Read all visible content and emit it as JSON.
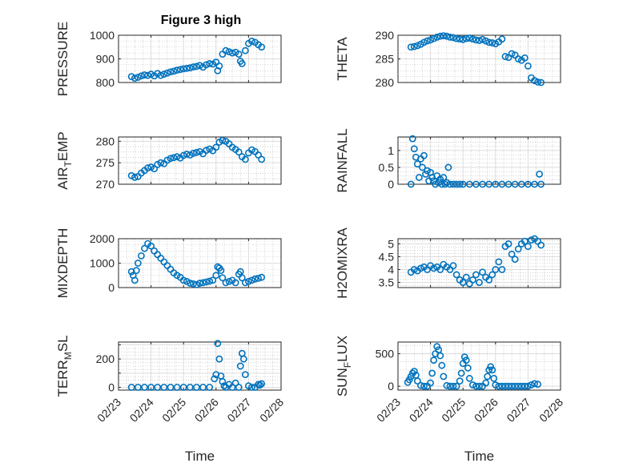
{
  "figure": {
    "title": "Figure 3 high"
  },
  "colors": {
    "marker": "#0072BD",
    "axis": "#262626",
    "grid": "#dcdcdc",
    "minor_grid": "#b4b4b4"
  },
  "chart_data": [
    {
      "id": "pressure",
      "type": "scatter",
      "ylabel": "PRESSURE",
      "xlim": [
        0,
        5
      ],
      "ylim": [
        800,
        1000
      ],
      "yticks": [
        800,
        900,
        1000
      ],
      "ytick_labels": [
        "800",
        "900",
        "1000"
      ],
      "xticks": [
        0,
        1,
        2,
        3,
        4,
        5
      ],
      "xtick_labels": [
        "02/23",
        "02/24",
        "02/25",
        "02/26",
        "02/27",
        "02/28"
      ],
      "show_xtick_labels": false,
      "xlabel": "",
      "x": [
        0.4,
        0.5,
        0.6,
        0.7,
        0.8,
        0.9,
        1.0,
        1.1,
        1.2,
        1.3,
        1.4,
        1.5,
        1.6,
        1.7,
        1.8,
        1.9,
        2.0,
        2.1,
        2.2,
        2.3,
        2.4,
        2.5,
        2.6,
        2.7,
        2.8,
        2.9,
        3.0,
        3.05,
        3.1,
        3.2,
        3.3,
        3.4,
        3.5,
        3.6,
        3.7,
        3.75,
        3.8,
        3.9,
        4.0,
        4.1,
        4.2,
        4.3,
        4.4
      ],
      "y": [
        825,
        818,
        822,
        828,
        832,
        830,
        835,
        828,
        838,
        830,
        835,
        840,
        845,
        848,
        852,
        855,
        858,
        860,
        862,
        866,
        868,
        872,
        865,
        875,
        880,
        878,
        886,
        850,
        870,
        920,
        935,
        930,
        925,
        928,
        920,
        890,
        880,
        935,
        965,
        975,
        970,
        960,
        950
      ]
    },
    {
      "id": "theta",
      "type": "scatter",
      "ylabel": "THETA",
      "xlim": [
        0,
        5
      ],
      "ylim": [
        280,
        290
      ],
      "yticks": [
        280,
        285,
        290
      ],
      "ytick_labels": [
        "280",
        "285",
        "290"
      ],
      "xticks": [
        0,
        1,
        2,
        3,
        4,
        5
      ],
      "xtick_labels": [
        "02/23",
        "02/24",
        "02/25",
        "02/26",
        "02/27",
        "02/28"
      ],
      "show_xtick_labels": false,
      "xlabel": "",
      "x": [
        0.4,
        0.5,
        0.6,
        0.7,
        0.8,
        0.9,
        1.0,
        1.1,
        1.2,
        1.3,
        1.4,
        1.5,
        1.6,
        1.7,
        1.8,
        1.9,
        2.0,
        2.1,
        2.2,
        2.3,
        2.4,
        2.5,
        2.6,
        2.7,
        2.8,
        2.9,
        3.0,
        3.1,
        3.2,
        3.3,
        3.4,
        3.5,
        3.6,
        3.7,
        3.8,
        3.9,
        4.0,
        4.1,
        4.2,
        4.3,
        4.4
      ],
      "y": [
        287.5,
        287.6,
        287.8,
        288.1,
        288.5,
        288.8,
        289.0,
        289.3,
        289.6,
        289.8,
        289.9,
        289.8,
        289.6,
        289.5,
        289.3,
        289.2,
        289.1,
        289.3,
        289.4,
        289.2,
        289.0,
        288.9,
        289.1,
        288.8,
        288.5,
        288.4,
        288.2,
        288.6,
        289.2,
        285.5,
        285.3,
        286.1,
        285.8,
        285.0,
        284.7,
        285.2,
        283.5,
        281.0,
        280.4,
        280.1,
        280.0
      ]
    },
    {
      "id": "air_temp",
      "type": "scatter",
      "ylabel": "AIR_TEMP",
      "ylabel_base": "AIR",
      "ylabel_sub": "T",
      "ylabel_rest": "EMP",
      "xlim": [
        0,
        5
      ],
      "ylim": [
        270,
        281
      ],
      "yticks": [
        270,
        275,
        280
      ],
      "ytick_labels": [
        "270",
        "275",
        "280"
      ],
      "xticks": [
        0,
        1,
        2,
        3,
        4,
        5
      ],
      "xtick_labels": [
        "02/23",
        "02/24",
        "02/25",
        "02/26",
        "02/27",
        "02/28"
      ],
      "show_xtick_labels": false,
      "xlabel": "",
      "x": [
        0.4,
        0.5,
        0.6,
        0.7,
        0.8,
        0.9,
        1.0,
        1.1,
        1.2,
        1.3,
        1.4,
        1.5,
        1.6,
        1.7,
        1.8,
        1.9,
        2.0,
        2.1,
        2.2,
        2.3,
        2.4,
        2.5,
        2.6,
        2.7,
        2.8,
        2.9,
        3.0,
        3.1,
        3.2,
        3.3,
        3.4,
        3.5,
        3.6,
        3.7,
        3.8,
        3.9,
        4.0,
        4.1,
        4.2,
        4.3,
        4.4
      ],
      "y": [
        272.0,
        271.6,
        271.8,
        272.6,
        273.2,
        273.8,
        274.0,
        273.6,
        274.6,
        275.0,
        274.8,
        275.6,
        276.0,
        276.2,
        276.4,
        276.1,
        276.7,
        277.0,
        276.8,
        277.2,
        277.4,
        277.6,
        277.1,
        277.9,
        278.2,
        277.8,
        278.6,
        279.8,
        280.2,
        280.0,
        279.4,
        278.6,
        278.1,
        277.5,
        276.4,
        275.8,
        277.3,
        278.0,
        277.6,
        276.8,
        275.8
      ]
    },
    {
      "id": "rainfall",
      "type": "scatter",
      "ylabel": "RAINFALL",
      "xlim": [
        0,
        5
      ],
      "ylim": [
        0,
        1.4
      ],
      "yticks": [
        0,
        0.5,
        1
      ],
      "ytick_labels": [
        "0",
        "0.5",
        "1"
      ],
      "xticks": [
        0,
        1,
        2,
        3,
        4,
        5
      ],
      "xtick_labels": [
        "02/23",
        "02/24",
        "02/25",
        "02/26",
        "02/27",
        "02/28"
      ],
      "show_xtick_labels": false,
      "xlabel": "",
      "x": [
        0.4,
        0.45,
        0.5,
        0.55,
        0.6,
        0.65,
        0.7,
        0.75,
        0.8,
        0.85,
        0.9,
        0.95,
        1.0,
        1.05,
        1.1,
        1.15,
        1.2,
        1.25,
        1.3,
        1.35,
        1.4,
        1.45,
        1.5,
        1.55,
        1.6,
        1.7,
        1.8,
        1.9,
        2.0,
        2.2,
        2.4,
        2.6,
        2.8,
        3.0,
        3.2,
        3.4,
        3.6,
        3.8,
        4.0,
        4.2,
        4.4,
        4.35
      ],
      "y": [
        0.0,
        1.35,
        1.05,
        0.8,
        0.6,
        0.2,
        0.75,
        0.5,
        0.85,
        0.3,
        0.4,
        0.1,
        0.35,
        0.2,
        0.1,
        0.0,
        0.25,
        0.05,
        0.15,
        0.0,
        0.2,
        0.0,
        0.05,
        0.5,
        0.0,
        0.0,
        0.0,
        0.0,
        0.0,
        0.0,
        0.0,
        0.0,
        0.0,
        0.0,
        0.0,
        0.0,
        0.0,
        0.0,
        0.0,
        0.0,
        0.0,
        0.3
      ]
    },
    {
      "id": "mixdepth",
      "type": "scatter",
      "ylabel": "MIXDEPTH",
      "xlim": [
        0,
        5
      ],
      "ylim": [
        0,
        2000
      ],
      "yticks": [
        0,
        1000,
        2000
      ],
      "ytick_labels": [
        "0",
        "1000",
        "2000"
      ],
      "xticks": [
        0,
        1,
        2,
        3,
        4,
        5
      ],
      "xtick_labels": [
        "02/23",
        "02/24",
        "02/25",
        "02/26",
        "02/27",
        "02/28"
      ],
      "show_xtick_labels": false,
      "xlabel": "",
      "x": [
        0.4,
        0.45,
        0.5,
        0.55,
        0.6,
        0.7,
        0.8,
        0.9,
        1.0,
        1.1,
        1.2,
        1.3,
        1.4,
        1.5,
        1.6,
        1.7,
        1.8,
        1.9,
        2.0,
        2.1,
        2.2,
        2.3,
        2.4,
        2.5,
        2.6,
        2.7,
        2.8,
        2.9,
        3.0,
        3.05,
        3.1,
        3.15,
        3.2,
        3.3,
        3.4,
        3.5,
        3.6,
        3.7,
        3.75,
        3.8,
        3.9,
        4.0,
        4.1,
        4.2,
        4.3,
        4.4
      ],
      "y": [
        650,
        500,
        300,
        700,
        1000,
        1300,
        1600,
        1800,
        1700,
        1500,
        1350,
        1200,
        1050,
        900,
        750,
        600,
        500,
        420,
        300,
        250,
        180,
        150,
        120,
        180,
        200,
        230,
        260,
        300,
        500,
        850,
        800,
        700,
        400,
        200,
        250,
        300,
        200,
        550,
        650,
        400,
        200,
        250,
        300,
        350,
        380,
        420
      ]
    },
    {
      "id": "h2omixra",
      "type": "scatter",
      "ylabel": "H2OMIXRA",
      "xlim": [
        0,
        5
      ],
      "ylim": [
        3.3,
        5.2
      ],
      "yticks": [
        3.5,
        4,
        4.5,
        5
      ],
      "ytick_labels": [
        "3.5",
        "4",
        "4.5",
        "5"
      ],
      "xticks": [
        0,
        1,
        2,
        3,
        4,
        5
      ],
      "xtick_labels": [
        "02/23",
        "02/24",
        "02/25",
        "02/26",
        "02/27",
        "02/28"
      ],
      "show_xtick_labels": false,
      "xlabel": "",
      "x": [
        0.4,
        0.5,
        0.6,
        0.7,
        0.8,
        0.9,
        1.0,
        1.1,
        1.2,
        1.3,
        1.4,
        1.5,
        1.6,
        1.7,
        1.8,
        1.9,
        2.0,
        2.1,
        2.2,
        2.3,
        2.4,
        2.5,
        2.6,
        2.7,
        2.8,
        2.9,
        3.0,
        3.1,
        3.2,
        3.3,
        3.4,
        3.5,
        3.6,
        3.7,
        3.8,
        3.9,
        4.0,
        4.1,
        4.2,
        4.3,
        4.4
      ],
      "y": [
        3.9,
        4.0,
        3.95,
        4.05,
        4.1,
        4.0,
        4.15,
        4.05,
        4.1,
        4.0,
        4.2,
        4.1,
        4.0,
        4.15,
        3.8,
        3.6,
        3.5,
        3.7,
        3.45,
        3.6,
        3.8,
        3.5,
        3.9,
        3.7,
        3.6,
        3.8,
        4.0,
        4.3,
        4.0,
        4.9,
        5.0,
        4.6,
        4.4,
        4.8,
        5.0,
        5.1,
        4.9,
        5.15,
        5.2,
        5.1,
        4.95
      ]
    },
    {
      "id": "terr_msl",
      "type": "scatter",
      "ylabel": "TERR_MSL",
      "ylabel_base": "TERR",
      "ylabel_sub": "M",
      "ylabel_rest": "SL",
      "xlim": [
        0,
        5
      ],
      "ylim": [
        -20,
        320
      ],
      "yticks": [
        0,
        100,
        200,
        300
      ],
      "ytick_labels": [
        "0",
        "",
        "200",
        ""
      ],
      "xticks": [
        0,
        1,
        2,
        3,
        4,
        5
      ],
      "xtick_labels": [
        "02/23",
        "02/24",
        "02/25",
        "02/26",
        "02/27",
        "02/28"
      ],
      "show_xtick_labels": true,
      "xlabel": "Time",
      "x": [
        0.4,
        0.6,
        0.8,
        1.0,
        1.2,
        1.4,
        1.6,
        1.8,
        2.0,
        2.2,
        2.4,
        2.6,
        2.8,
        2.95,
        3.0,
        3.05,
        3.1,
        3.15,
        3.2,
        3.25,
        3.3,
        3.4,
        3.5,
        3.6,
        3.7,
        3.75,
        3.8,
        3.85,
        3.9,
        4.0,
        4.1,
        4.2,
        4.3,
        4.4,
        4.35
      ],
      "y": [
        0,
        0,
        0,
        0,
        0,
        0,
        0,
        0,
        0,
        0,
        0,
        0,
        0,
        60,
        90,
        310,
        200,
        80,
        40,
        10,
        0,
        20,
        0,
        30,
        0,
        150,
        240,
        200,
        90,
        10,
        0,
        0,
        20,
        25,
        15
      ]
    },
    {
      "id": "sun_flux",
      "type": "scatter",
      "ylabel": "SUN_FLUX",
      "ylabel_base": "SUN",
      "ylabel_sub": "F",
      "ylabel_rest": "LUX",
      "xlim": [
        0,
        5
      ],
      "ylim": [
        -60,
        680
      ],
      "yticks": [
        0,
        500
      ],
      "ytick_labels": [
        "0",
        "500"
      ],
      "xticks": [
        0,
        1,
        2,
        3,
        4,
        5
      ],
      "xtick_labels": [
        "02/23",
        "02/24",
        "02/25",
        "02/26",
        "02/27",
        "02/28"
      ],
      "show_xtick_labels": true,
      "xlabel": "Time",
      "x": [
        0.3,
        0.35,
        0.4,
        0.45,
        0.5,
        0.55,
        0.6,
        0.7,
        0.8,
        0.9,
        1.0,
        1.05,
        1.1,
        1.15,
        1.2,
        1.25,
        1.3,
        1.35,
        1.4,
        1.5,
        1.6,
        1.7,
        1.8,
        1.9,
        1.95,
        2.0,
        2.05,
        2.1,
        2.15,
        2.2,
        2.3,
        2.4,
        2.5,
        2.6,
        2.7,
        2.75,
        2.8,
        2.85,
        2.9,
        2.95,
        3.0,
        3.1,
        3.2,
        3.3,
        3.4,
        3.5,
        3.6,
        3.7,
        3.8,
        3.9,
        4.0,
        4.1,
        4.2,
        4.3
      ],
      "y": [
        60,
        100,
        150,
        200,
        230,
        170,
        80,
        10,
        0,
        0,
        50,
        200,
        400,
        500,
        610,
        560,
        470,
        320,
        150,
        10,
        0,
        0,
        0,
        80,
        200,
        350,
        450,
        400,
        280,
        120,
        20,
        0,
        0,
        0,
        50,
        150,
        250,
        300,
        250,
        120,
        20,
        0,
        0,
        0,
        0,
        0,
        0,
        0,
        0,
        0,
        0,
        20,
        40,
        30
      ]
    }
  ]
}
